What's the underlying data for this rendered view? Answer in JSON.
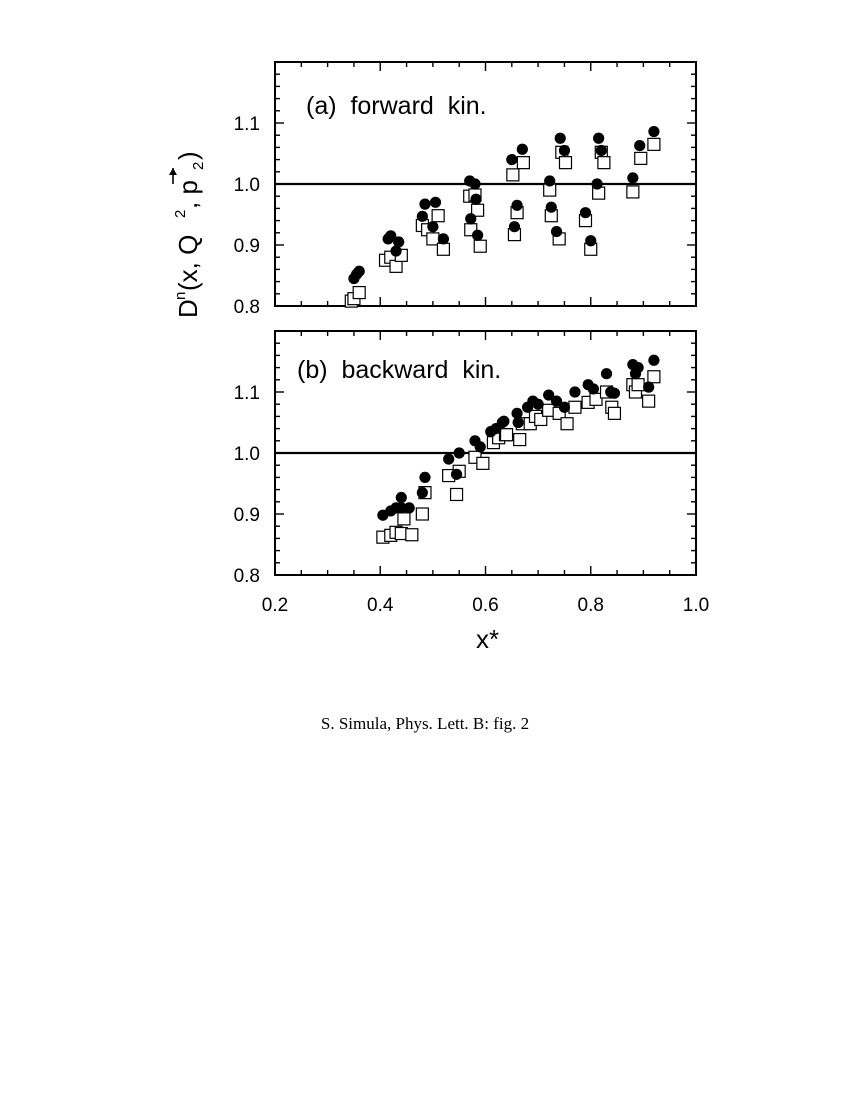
{
  "caption": "S. Simula, Phys. Lett. B: fig. 2",
  "chart_data": {
    "type": "scatter",
    "xlabel": "x*",
    "ylabel": "D^n(x, Q^2, p_2)",
    "xlim": [
      0.2,
      1.0
    ],
    "ylim": [
      0.8,
      1.2
    ],
    "x_ticks": [
      "0.2",
      "0.4",
      "0.6",
      "0.8",
      "1.0"
    ],
    "y_ticks": [
      "0.8",
      "0.9",
      "1.0",
      "1.1"
    ],
    "reference_line_y": 1.0,
    "panels": [
      {
        "label": "(a)  forward  kin.",
        "filled_circles": {
          "x": [
            0.35,
            0.355,
            0.36,
            0.415,
            0.42,
            0.43,
            0.435,
            0.48,
            0.485,
            0.5,
            0.505,
            0.52,
            0.57,
            0.572,
            0.58,
            0.582,
            0.585,
            0.65,
            0.655,
            0.66,
            0.67,
            0.722,
            0.725,
            0.735,
            0.742,
            0.75,
            0.79,
            0.8,
            0.812,
            0.815,
            0.82,
            0.88,
            0.893,
            0.92
          ],
          "y": [
            0.845,
            0.852,
            0.857,
            0.91,
            0.915,
            0.89,
            0.905,
            0.947,
            0.967,
            0.93,
            0.97,
            0.91,
            1.005,
            0.943,
            1.0,
            0.975,
            0.916,
            1.04,
            0.93,
            0.965,
            1.057,
            1.005,
            0.962,
            0.922,
            1.075,
            1.055,
            0.953,
            0.907,
            1.0,
            1.075,
            1.055,
            1.01,
            1.063,
            1.086
          ]
        },
        "open_squares": {
          "x": [
            0.345,
            0.35,
            0.36,
            0.41,
            0.42,
            0.43,
            0.44,
            0.48,
            0.49,
            0.5,
            0.51,
            0.52,
            0.57,
            0.572,
            0.58,
            0.585,
            0.59,
            0.652,
            0.655,
            0.66,
            0.672,
            0.722,
            0.725,
            0.74,
            0.745,
            0.752,
            0.79,
            0.8,
            0.815,
            0.82,
            0.825,
            0.88,
            0.895,
            0.92
          ],
          "y": [
            0.808,
            0.812,
            0.822,
            0.875,
            0.88,
            0.865,
            0.883,
            0.932,
            0.925,
            0.91,
            0.948,
            0.893,
            0.98,
            0.925,
            0.982,
            0.957,
            0.898,
            1.015,
            0.917,
            0.953,
            1.035,
            0.99,
            0.948,
            0.91,
            1.052,
            1.035,
            0.94,
            0.893,
            0.985,
            1.052,
            1.035,
            0.987,
            1.042,
            1.065
          ]
        }
      },
      {
        "label": "(b)  backward  kin.",
        "filled_circles": {
          "x": [
            0.405,
            0.42,
            0.43,
            0.44,
            0.44,
            0.455,
            0.48,
            0.485,
            0.53,
            0.545,
            0.55,
            0.58,
            0.59,
            0.61,
            0.62,
            0.632,
            0.635,
            0.66,
            0.662,
            0.68,
            0.69,
            0.7,
            0.72,
            0.735,
            0.75,
            0.77,
            0.795,
            0.805,
            0.83,
            0.838,
            0.845,
            0.88,
            0.885,
            0.89,
            0.91,
            0.92
          ],
          "y": [
            0.898,
            0.905,
            0.91,
            0.927,
            0.91,
            0.91,
            0.935,
            0.96,
            0.99,
            0.965,
            1.0,
            1.02,
            1.01,
            1.035,
            1.04,
            1.05,
            1.052,
            1.065,
            1.05,
            1.075,
            1.085,
            1.08,
            1.095,
            1.085,
            1.075,
            1.1,
            1.112,
            1.105,
            1.13,
            1.1,
            1.098,
            1.145,
            1.13,
            1.14,
            1.108,
            1.152
          ]
        },
        "open_squares": {
          "x": [
            0.405,
            0.42,
            0.43,
            0.44,
            0.445,
            0.46,
            0.48,
            0.485,
            0.53,
            0.545,
            0.55,
            0.58,
            0.595,
            0.615,
            0.625,
            0.638,
            0.64,
            0.665,
            0.67,
            0.685,
            0.695,
            0.705,
            0.72,
            0.74,
            0.755,
            0.77,
            0.795,
            0.81,
            0.83,
            0.84,
            0.845,
            0.88,
            0.885,
            0.89,
            0.91,
            0.92
          ],
          "y": [
            0.862,
            0.865,
            0.87,
            0.868,
            0.892,
            0.866,
            0.9,
            0.935,
            0.963,
            0.932,
            0.97,
            0.993,
            0.983,
            1.017,
            1.025,
            1.03,
            1.03,
            1.022,
            1.048,
            1.048,
            1.06,
            1.055,
            1.07,
            1.065,
            1.048,
            1.075,
            1.083,
            1.088,
            1.1,
            1.075,
            1.065,
            1.112,
            1.1,
            1.112,
            1.085,
            1.125
          ]
        }
      }
    ]
  }
}
